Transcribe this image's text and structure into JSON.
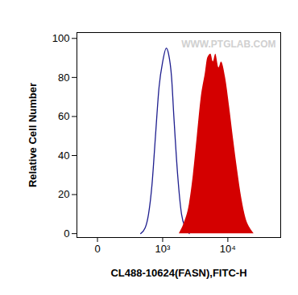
{
  "chart_data": {
    "type": "histogram",
    "x_label": "CL488-10624(FASN),FITC-H",
    "y_label": "Relative Cell Number",
    "log": "x",
    "xlim": [
      -125,
      60000
    ],
    "xticks": [
      0,
      {
        "value": 1000,
        "label": "10³"
      },
      {
        "value": 10000,
        "label": "10⁴"
      }
    ],
    "ylim": [
      -2,
      103
    ],
    "yticks": [
      0,
      20,
      40,
      60,
      80,
      100
    ],
    "grid": false,
    "annotations": [
      {
        "text": "WWW.PTGLAB.COM"
      }
    ],
    "series": [
      {
        "type": "line",
        "color": "#1f1f8f",
        "x": [
          411,
          500,
          574,
          660,
          758,
          871,
          1000,
          1149,
          1248,
          1395,
          1516,
          1741,
          2000,
          2298,
          2640
        ],
        "values": [
          0,
          3,
          10,
          25,
          50,
          75,
          88,
          95,
          92,
          80,
          60,
          30,
          10,
          3,
          0
        ]
      },
      {
        "type": "area",
        "color": "#d40000",
        "x": [
          1841,
          2175,
          2640,
          3034,
          3484,
          4002,
          4600,
          5000,
          5585,
          6066,
          6594,
          7365,
          8015,
          9204,
          10570,
          12140,
          13960,
          16030,
          18410,
          21150,
          24300
        ],
        "values": [
          0,
          5,
          15,
          30,
          50,
          70,
          82,
          90,
          92,
          88,
          92,
          85,
          88,
          80,
          65,
          48,
          32,
          18,
          8,
          3,
          0
        ]
      }
    ]
  }
}
